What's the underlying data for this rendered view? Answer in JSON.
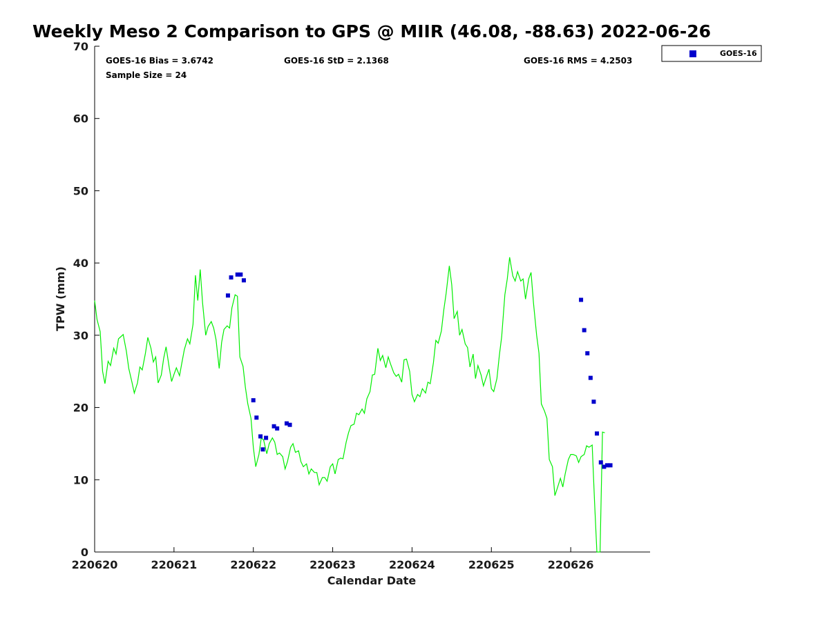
{
  "chart_data": {
    "type": "scatter",
    "title": "Weekly Meso 2 Comparison to GPS @ MIIR (46.08, -88.63) 2022-06-26",
    "xlabel": "Calendar Date",
    "ylabel": "TPW (mm)",
    "xlim": [
      0,
      7
    ],
    "ylim": [
      0,
      70
    ],
    "x_ticks": [
      0,
      1,
      2,
      3,
      4,
      5,
      6
    ],
    "x_tick_labels": [
      "220620",
      "220621",
      "220622",
      "220623",
      "220624",
      "220625",
      "220626"
    ],
    "y_ticks": [
      0,
      10,
      20,
      30,
      40,
      50,
      60,
      70
    ],
    "y_tick_labels": [
      "0",
      "10",
      "20",
      "30",
      "40",
      "50",
      "60",
      "70"
    ],
    "grid": false,
    "legend_position": "top-right",
    "stats": {
      "bias": "GOES-16 Bias = 3.6742",
      "std": "GOES-16 StD = 2.1368",
      "rms": "GOES-16 RMS = 4.2503",
      "sample_size": "Sample Size = 24"
    },
    "series": [
      {
        "name": "GOES-16",
        "marker": "square",
        "color": "#0000cc",
        "points": [
          [
            1.68,
            35.5
          ],
          [
            1.72,
            38.0
          ],
          [
            1.8,
            38.4
          ],
          [
            1.84,
            38.4
          ],
          [
            1.88,
            37.6
          ],
          [
            2.0,
            21.0
          ],
          [
            2.04,
            18.6
          ],
          [
            2.09,
            16.0
          ],
          [
            2.12,
            14.2
          ],
          [
            2.16,
            15.8
          ],
          [
            2.26,
            17.4
          ],
          [
            2.3,
            17.1
          ],
          [
            2.42,
            17.8
          ],
          [
            2.46,
            17.6
          ],
          [
            6.13,
            34.9
          ],
          [
            6.17,
            30.7
          ],
          [
            6.21,
            27.5
          ],
          [
            6.25,
            24.1
          ],
          [
            6.29,
            20.8
          ],
          [
            6.33,
            16.4
          ],
          [
            6.38,
            12.4
          ],
          [
            6.42,
            11.8
          ],
          [
            6.46,
            12.0
          ],
          [
            6.5,
            12.0
          ]
        ]
      },
      {
        "name": "GPS",
        "type": "line",
        "color": "#00ee00",
        "points": [
          [
            0.0,
            34.8
          ],
          [
            0.03,
            32.2
          ],
          [
            0.07,
            30.5
          ],
          [
            0.1,
            25.0
          ],
          [
            0.13,
            23.3
          ],
          [
            0.17,
            26.4
          ],
          [
            0.2,
            25.8
          ],
          [
            0.24,
            28.2
          ],
          [
            0.27,
            27.4
          ],
          [
            0.3,
            29.5
          ],
          [
            0.33,
            29.8
          ],
          [
            0.36,
            30.1
          ],
          [
            0.4,
            27.8
          ],
          [
            0.43,
            25.4
          ],
          [
            0.47,
            23.5
          ],
          [
            0.5,
            22.0
          ],
          [
            0.54,
            23.4
          ],
          [
            0.57,
            25.6
          ],
          [
            0.6,
            25.2
          ],
          [
            0.64,
            27.5
          ],
          [
            0.67,
            29.7
          ],
          [
            0.71,
            28.2
          ],
          [
            0.74,
            26.3
          ],
          [
            0.77,
            27.0
          ],
          [
            0.8,
            23.4
          ],
          [
            0.84,
            24.5
          ],
          [
            0.87,
            26.8
          ],
          [
            0.9,
            28.4
          ],
          [
            0.94,
            25.5
          ],
          [
            0.97,
            23.6
          ],
          [
            1.0,
            24.6
          ],
          [
            1.03,
            25.5
          ],
          [
            1.07,
            24.4
          ],
          [
            1.1,
            26.2
          ],
          [
            1.13,
            28.0
          ],
          [
            1.17,
            29.5
          ],
          [
            1.2,
            28.8
          ],
          [
            1.24,
            31.5
          ],
          [
            1.27,
            38.3
          ],
          [
            1.3,
            34.8
          ],
          [
            1.33,
            39.1
          ],
          [
            1.36,
            34.5
          ],
          [
            1.4,
            30.0
          ],
          [
            1.43,
            31.2
          ],
          [
            1.47,
            31.9
          ],
          [
            1.5,
            31.0
          ],
          [
            1.53,
            29.4
          ],
          [
            1.57,
            25.4
          ],
          [
            1.6,
            29.0
          ],
          [
            1.63,
            30.8
          ],
          [
            1.67,
            31.3
          ],
          [
            1.7,
            31.0
          ],
          [
            1.73,
            33.8
          ],
          [
            1.77,
            35.6
          ],
          [
            1.8,
            35.4
          ],
          [
            1.83,
            27.0
          ],
          [
            1.87,
            25.7
          ],
          [
            1.9,
            22.8
          ],
          [
            1.93,
            20.5
          ],
          [
            1.97,
            18.5
          ],
          [
            2.0,
            14.5
          ],
          [
            2.03,
            11.8
          ],
          [
            2.07,
            13.5
          ],
          [
            2.1,
            15.8
          ],
          [
            2.13,
            15.5
          ],
          [
            2.17,
            13.6
          ],
          [
            2.2,
            15.0
          ],
          [
            2.24,
            15.8
          ],
          [
            2.27,
            15.2
          ],
          [
            2.3,
            13.5
          ],
          [
            2.33,
            13.7
          ],
          [
            2.37,
            13.2
          ],
          [
            2.4,
            11.5
          ],
          [
            2.43,
            12.5
          ],
          [
            2.47,
            14.5
          ],
          [
            2.5,
            15.0
          ],
          [
            2.53,
            13.8
          ],
          [
            2.57,
            14.0
          ],
          [
            2.6,
            12.5
          ],
          [
            2.63,
            11.8
          ],
          [
            2.67,
            12.2
          ],
          [
            2.7,
            10.8
          ],
          [
            2.73,
            11.5
          ],
          [
            2.77,
            11.0
          ],
          [
            2.8,
            11.0
          ],
          [
            2.83,
            9.3
          ],
          [
            2.87,
            10.3
          ],
          [
            2.9,
            10.3
          ],
          [
            2.93,
            9.8
          ],
          [
            2.97,
            11.8
          ],
          [
            3.0,
            12.2
          ],
          [
            3.03,
            10.8
          ],
          [
            3.07,
            12.8
          ],
          [
            3.1,
            13.0
          ],
          [
            3.13,
            12.9
          ],
          [
            3.17,
            15.2
          ],
          [
            3.2,
            16.5
          ],
          [
            3.23,
            17.5
          ],
          [
            3.27,
            17.7
          ],
          [
            3.3,
            19.2
          ],
          [
            3.33,
            19.0
          ],
          [
            3.37,
            19.8
          ],
          [
            3.4,
            19.2
          ],
          [
            3.43,
            21.2
          ],
          [
            3.47,
            22.2
          ],
          [
            3.5,
            24.5
          ],
          [
            3.53,
            24.6
          ],
          [
            3.57,
            28.2
          ],
          [
            3.6,
            26.5
          ],
          [
            3.63,
            27.2
          ],
          [
            3.67,
            25.5
          ],
          [
            3.7,
            27.0
          ],
          [
            3.73,
            26.0
          ],
          [
            3.77,
            24.8
          ],
          [
            3.8,
            24.3
          ],
          [
            3.83,
            24.6
          ],
          [
            3.87,
            23.5
          ],
          [
            3.9,
            26.6
          ],
          [
            3.93,
            26.7
          ],
          [
            3.97,
            25.0
          ],
          [
            4.0,
            21.8
          ],
          [
            4.03,
            20.8
          ],
          [
            4.07,
            21.8
          ],
          [
            4.1,
            21.5
          ],
          [
            4.13,
            22.6
          ],
          [
            4.17,
            22.0
          ],
          [
            4.2,
            23.5
          ],
          [
            4.23,
            23.3
          ],
          [
            4.27,
            26.2
          ],
          [
            4.3,
            29.3
          ],
          [
            4.33,
            28.9
          ],
          [
            4.37,
            30.6
          ],
          [
            4.4,
            33.5
          ],
          [
            4.43,
            35.8
          ],
          [
            4.47,
            39.6
          ],
          [
            4.5,
            37.0
          ],
          [
            4.53,
            32.3
          ],
          [
            4.57,
            33.3
          ],
          [
            4.6,
            30.0
          ],
          [
            4.63,
            30.8
          ],
          [
            4.67,
            28.8
          ],
          [
            4.7,
            28.3
          ],
          [
            4.73,
            25.6
          ],
          [
            4.77,
            27.4
          ],
          [
            4.8,
            24.0
          ],
          [
            4.83,
            25.8
          ],
          [
            4.87,
            24.5
          ],
          [
            4.9,
            23.0
          ],
          [
            4.93,
            24.0
          ],
          [
            4.97,
            25.3
          ],
          [
            5.0,
            22.6
          ],
          [
            5.03,
            22.2
          ],
          [
            5.07,
            24.0
          ],
          [
            5.1,
            27.2
          ],
          [
            5.13,
            29.8
          ],
          [
            5.17,
            35.6
          ],
          [
            5.2,
            37.8
          ],
          [
            5.23,
            40.8
          ],
          [
            5.27,
            38.2
          ],
          [
            5.3,
            37.5
          ],
          [
            5.33,
            38.8
          ],
          [
            5.37,
            37.5
          ],
          [
            5.4,
            37.8
          ],
          [
            5.43,
            35.0
          ],
          [
            5.47,
            37.8
          ],
          [
            5.5,
            38.7
          ],
          [
            5.53,
            34.5
          ],
          [
            5.57,
            30.0
          ],
          [
            5.6,
            27.5
          ],
          [
            5.63,
            20.5
          ],
          [
            5.67,
            19.5
          ],
          [
            5.7,
            18.5
          ],
          [
            5.73,
            12.8
          ],
          [
            5.77,
            11.8
          ],
          [
            5.8,
            7.8
          ],
          [
            5.83,
            8.8
          ],
          [
            5.87,
            10.2
          ],
          [
            5.9,
            9.0
          ],
          [
            5.93,
            10.8
          ],
          [
            5.97,
            12.8
          ],
          [
            6.0,
            13.5
          ],
          [
            6.03,
            13.5
          ],
          [
            6.07,
            13.3
          ],
          [
            6.1,
            12.4
          ],
          [
            6.13,
            13.2
          ],
          [
            6.17,
            13.5
          ],
          [
            6.2,
            14.7
          ],
          [
            6.23,
            14.5
          ],
          [
            6.27,
            14.8
          ],
          [
            6.3,
            7.0
          ],
          [
            6.33,
            0.0
          ],
          [
            6.37,
            0.0
          ],
          [
            6.4,
            16.6
          ],
          [
            6.43,
            16.5
          ]
        ]
      }
    ]
  }
}
